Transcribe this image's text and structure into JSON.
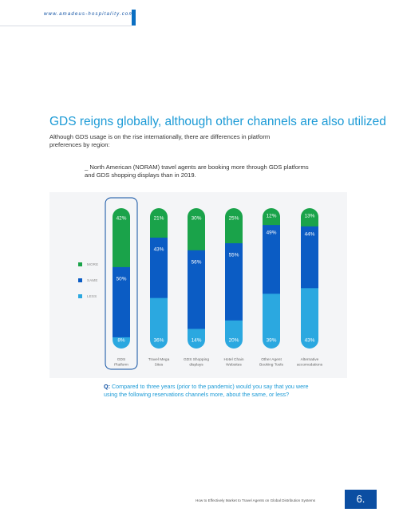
{
  "header": {
    "url": "www.amadeus-hospitality.com"
  },
  "title": "GDS reigns globally, although other channels are also utilized",
  "intro": "Although GDS usage is on the rise internationally, there are differences in platform preferences by region:",
  "callout": "_ North American (NORAM) travel agents are booking more through GDS platforms and GDS shopping displays than in 2019.",
  "legend": [
    {
      "label": "MORE",
      "color": "#1aa34a"
    },
    {
      "label": "SAME",
      "color": "#0b5cc4"
    },
    {
      "label": "LESS",
      "color": "#2ba8e0"
    }
  ],
  "chart_data": {
    "type": "bar",
    "stacked": true,
    "categories": [
      "GDS Platform",
      "Travel Mega Sites",
      "GDS Shopping displays",
      "Hotel Chain Websites",
      "Other Agent Booking Tools",
      "Alternative accomodations"
    ],
    "series": [
      {
        "name": "MORE",
        "color": "#1aa34a",
        "values": [
          42,
          21,
          30,
          25,
          12,
          13
        ]
      },
      {
        "name": "SAME",
        "color": "#0b5cc4",
        "values": [
          50,
          43,
          56,
          55,
          49,
          44
        ]
      },
      {
        "name": "LESS",
        "color": "#2ba8e0",
        "values": [
          8,
          36,
          14,
          20,
          39,
          43
        ]
      }
    ],
    "data_labels": [
      [
        "42%",
        "50%",
        "8%"
      ],
      [
        "21%",
        "43%",
        "36%"
      ],
      [
        "30%",
        "56%",
        "14%"
      ],
      [
        "25%",
        "55%",
        "20%"
      ],
      [
        "12%",
        "49%",
        "39%"
      ],
      [
        "13%",
        "44%",
        "43%"
      ]
    ],
    "highlight_category": "GDS Platform",
    "legend_position": "left",
    "grid": false
  },
  "question": {
    "prefix": "Q:",
    "text": "Compared to three years (prior to the pandemic) would you say that you were using the following reservations channels more, about the same, or less?"
  },
  "footer": {
    "text": "How to Effectively Market to Travel Agents on Global Distribution Systems",
    "page": "6."
  }
}
